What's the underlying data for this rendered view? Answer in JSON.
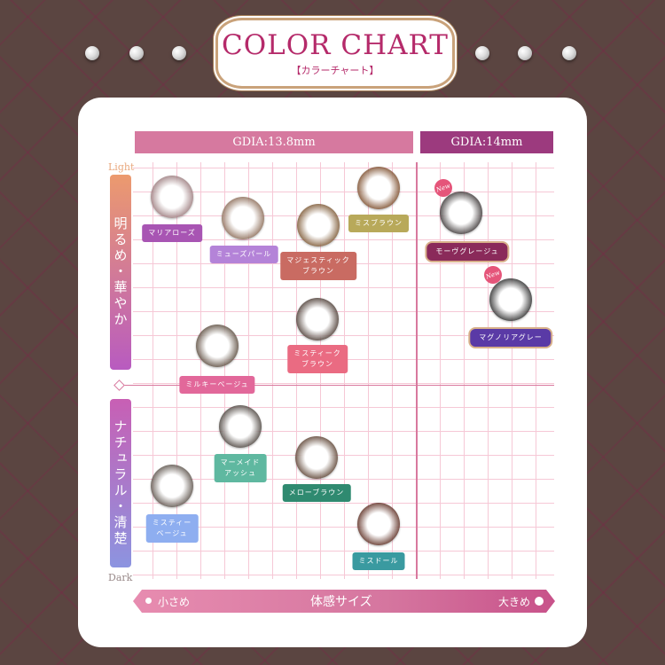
{
  "header": {
    "title": "COLOR CHART",
    "subtitle": "【カラーチャート】"
  },
  "groups": [
    {
      "label": "GDIA:13.8mm",
      "color": "#d6799f"
    },
    {
      "label": "GDIA:14mm",
      "color": "#9c3a7e"
    }
  ],
  "chart_data": {
    "type": "scatter",
    "xlabel": "体感サイズ",
    "x_min_label": "小さめ",
    "x_max_label": "大きめ",
    "y_top_label": "Light",
    "y_bottom_label": "Dark",
    "y_upper_category": "明るめ・華やか",
    "y_lower_category": "ナチュラル・清楚",
    "points": [
      {
        "name": "マリアローズ",
        "group": "GDIA:13.8mm",
        "color": "#a855b3",
        "lens": "#9a7a7c"
      },
      {
        "name": "ミューズパール",
        "group": "GDIA:13.8mm",
        "color": "#b483d8",
        "lens": "#8a6a55"
      },
      {
        "name": "マジェスティック\nブラウン",
        "group": "GDIA:13.8mm",
        "color": "#c96b62",
        "lens": "#7a5530"
      },
      {
        "name": "ミスブラウン",
        "group": "GDIA:13.8mm",
        "color": "#b8a95a",
        "lens": "#7a4a28"
      },
      {
        "name": "ミスティーク\nブラウン",
        "group": "GDIA:13.8mm",
        "color": "#ea6b82",
        "lens": "#4a3a32"
      },
      {
        "name": "ミルキーベージュ",
        "group": "GDIA:13.8mm",
        "color": "#e2689a",
        "lens": "#5a4a3c"
      },
      {
        "name": "マーメイド\nアッシュ",
        "group": "GDIA:13.8mm",
        "color": "#5fb8a0",
        "lens": "#4a423c"
      },
      {
        "name": "メローブラウン",
        "group": "GDIA:13.8mm",
        "color": "#2f8a70",
        "lens": "#5a4030"
      },
      {
        "name": "ミスティー\nベージュ",
        "group": "GDIA:13.8mm",
        "color": "#8eaef0",
        "lens": "#5a5048"
      },
      {
        "name": "ミスドール",
        "group": "GDIA:13.8mm",
        "color": "#3a9aa0",
        "lens": "#5a2a1e"
      },
      {
        "name": "モーヴグレージュ",
        "group": "GDIA:14mm",
        "color": "#8a2a5a",
        "lens": "#3a3434",
        "badge": "New"
      },
      {
        "name": "マグノリアグレー",
        "group": "GDIA:14mm",
        "color": "#5a3aa6",
        "lens": "#2a2a2a",
        "badge": "New"
      }
    ]
  }
}
